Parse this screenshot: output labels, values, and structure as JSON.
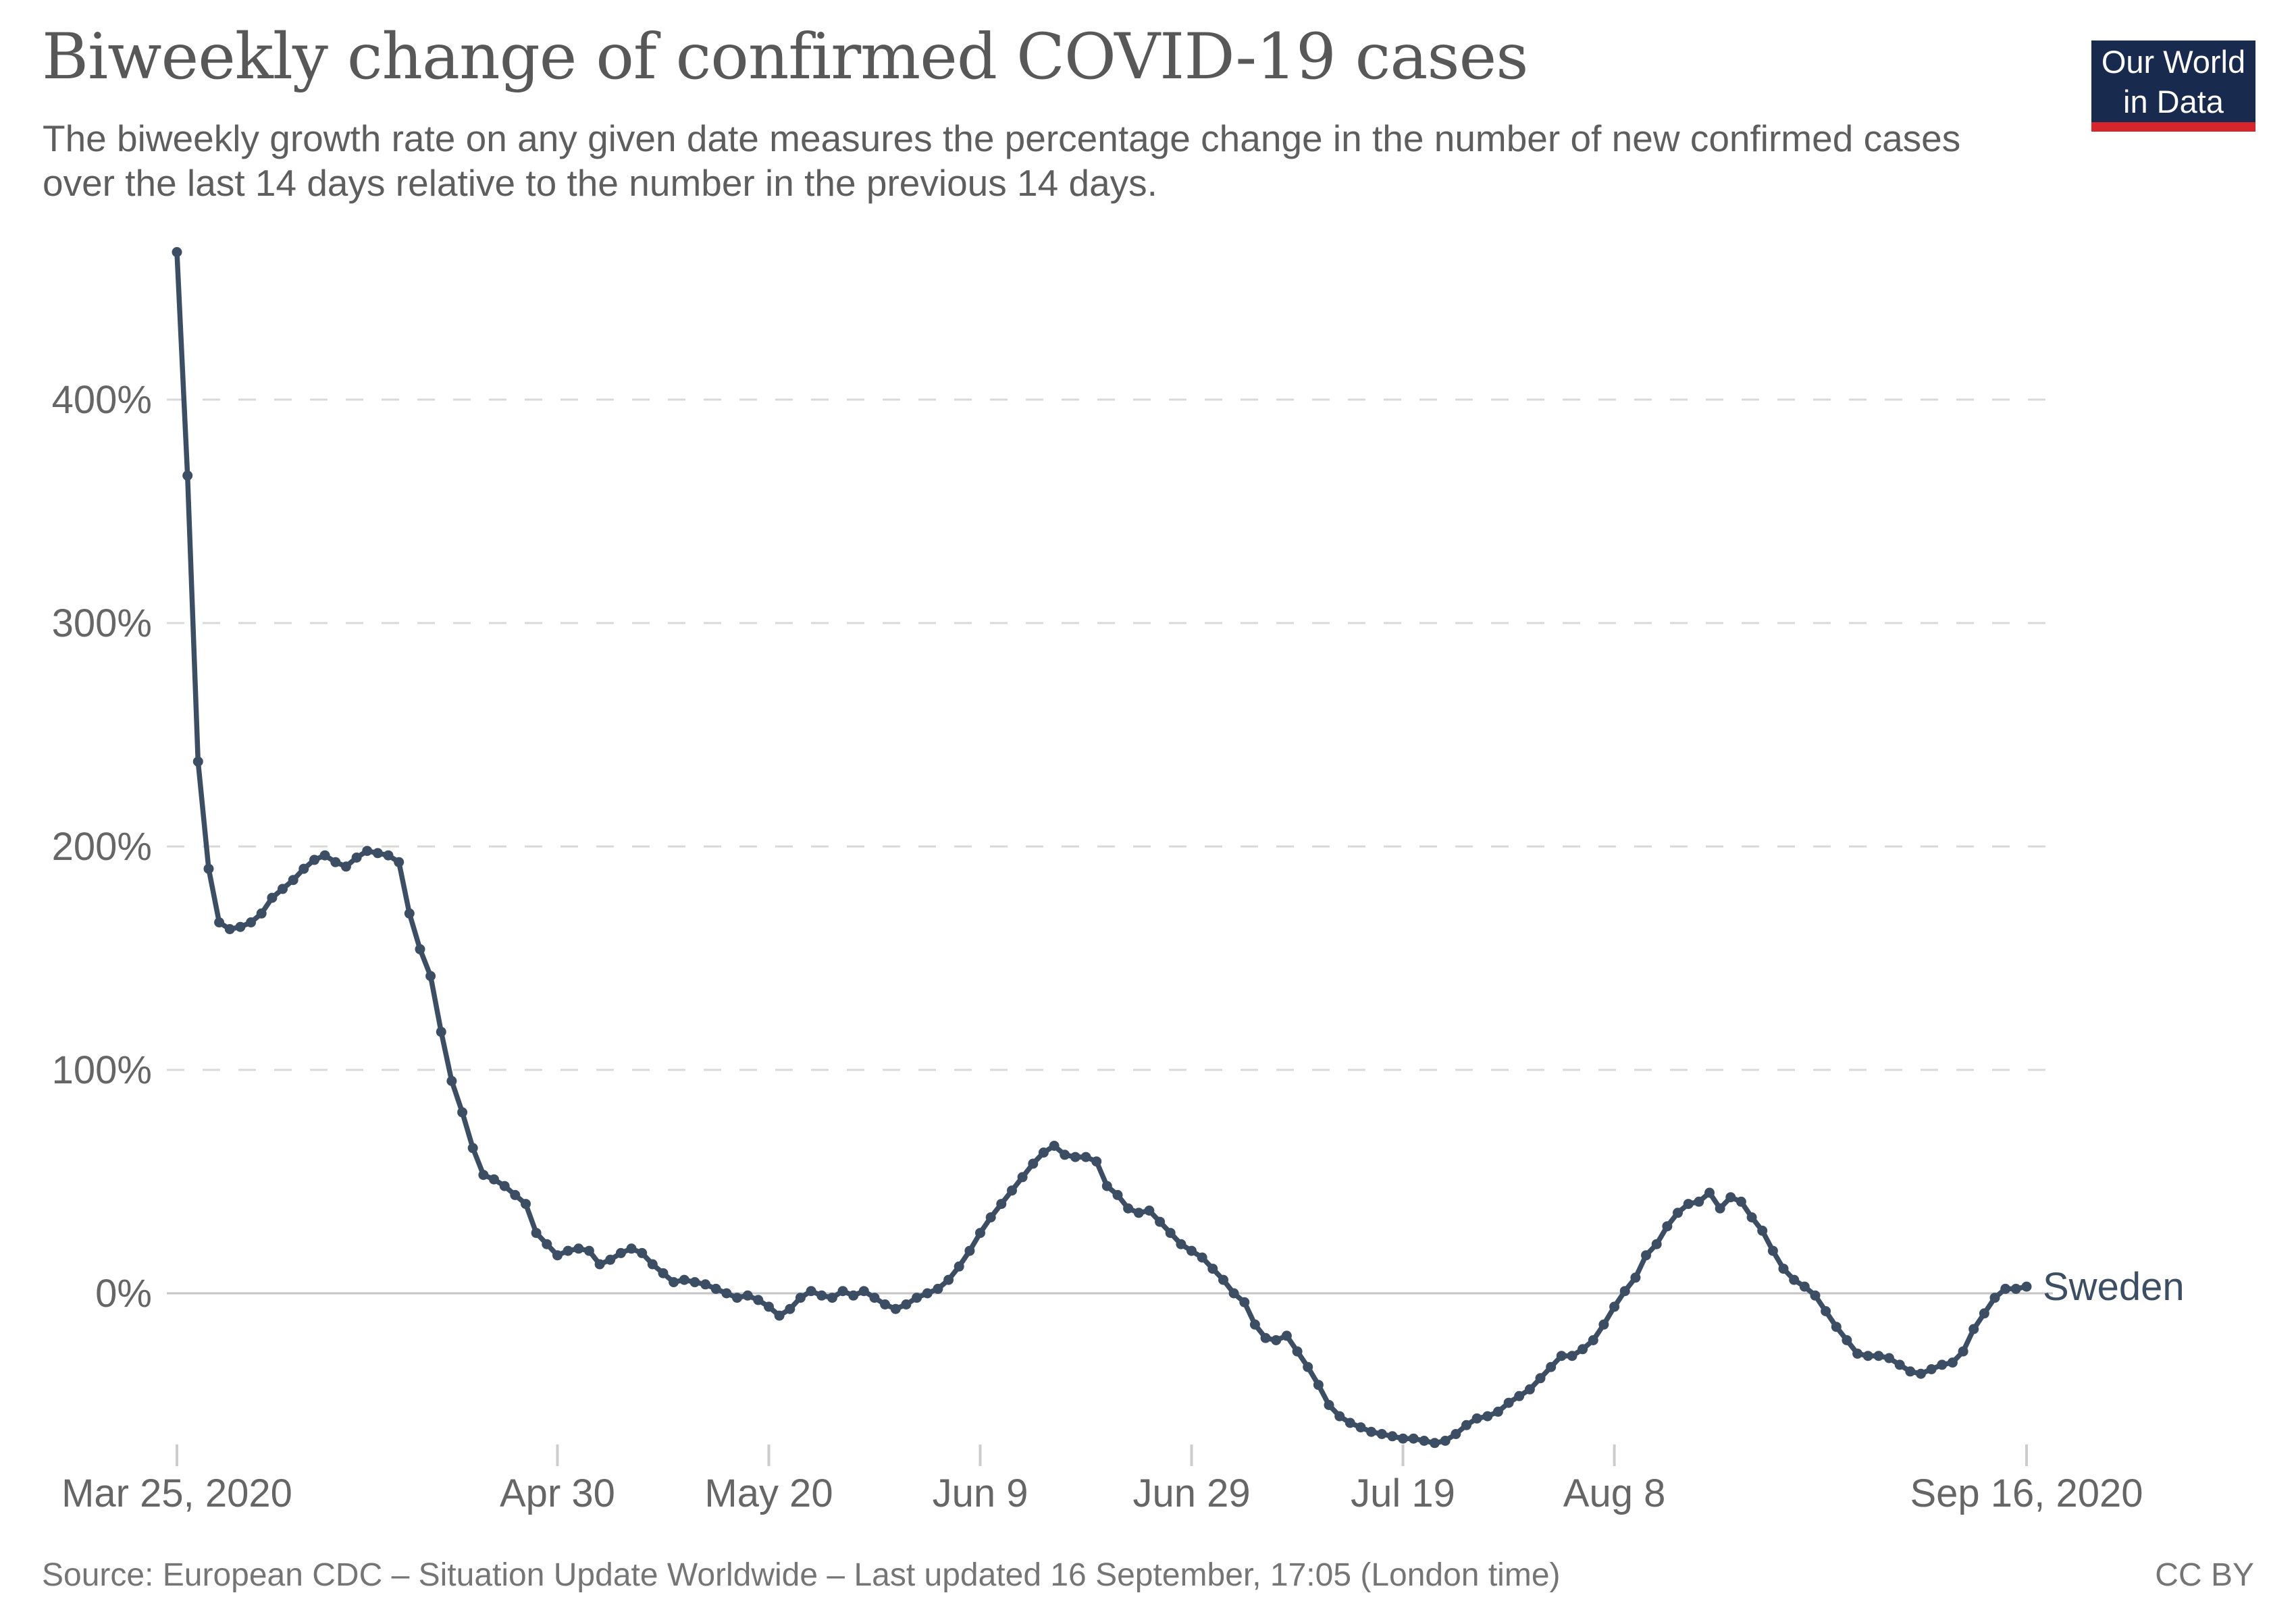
{
  "header": {
    "title": "Biweekly change of confirmed COVID-19 cases",
    "subtitle": "The biweekly growth rate on any given date measures the percentage change in the number of new confirmed cases over the last 14 days relative to the number in the previous 14 days.",
    "logo": {
      "line1": "Our World",
      "line2": "in Data"
    }
  },
  "footer": {
    "source": "Source: European CDC – Situation Update Worldwide – Last updated 16 September, 17:05 (London time)",
    "license": "CC BY"
  },
  "colors": {
    "series_line": "#3c4e63",
    "grid_line": "#d9d9d9",
    "zero_line": "#c5c5c5",
    "tick_mark": "#cccccc",
    "axis_text": "#666666",
    "title_text": "#585858",
    "subtitle_text": "#5e5e5e",
    "footer_text": "#757575",
    "logo_background": "#182a4e",
    "logo_stripe": "#d7262b"
  },
  "chart_data": {
    "type": "line",
    "title": "Biweekly change of confirmed COVID-19 cases",
    "xlabel": "",
    "ylabel": "",
    "unit": "%",
    "x_start_date": "Mar 25, 2020",
    "x_end_date": "Sep 16, 2020",
    "x_days_total": 175,
    "grid": "horizontal dashed gridlines, solid zero line, no vertical grid",
    "legend_position": "label at end of line",
    "y_ticks": [
      0,
      100,
      200,
      300,
      400
    ],
    "ylim": [
      -70,
      470
    ],
    "x_tick_labels": [
      {
        "day": 0,
        "label": "Mar 25, 2020"
      },
      {
        "day": 36,
        "label": "Apr 30"
      },
      {
        "day": 56,
        "label": "May 20"
      },
      {
        "day": 76,
        "label": "Jun 9"
      },
      {
        "day": 96,
        "label": "Jun 29"
      },
      {
        "day": 116,
        "label": "Jul 19"
      },
      {
        "day": 136,
        "label": "Aug 8"
      },
      {
        "day": 175,
        "label": "Sep 16, 2020"
      }
    ],
    "series": [
      {
        "name": "Sweden",
        "values": [
          466,
          366,
          238,
          190,
          166,
          163,
          164,
          166,
          170,
          177,
          181,
          185,
          190,
          194,
          196,
          193,
          191,
          195,
          198,
          197,
          196,
          193,
          170,
          154,
          142,
          117,
          95,
          81,
          65,
          53,
          51,
          48,
          44,
          40,
          27,
          22,
          17,
          19,
          20,
          19,
          13,
          15,
          18,
          20,
          18,
          13,
          9,
          5,
          6,
          5,
          4,
          2,
          0,
          -2,
          -1,
          -3,
          -6,
          -10,
          -7,
          -2,
          1,
          -1,
          -2,
          1,
          -1,
          1,
          -2,
          -5,
          -7,
          -5,
          -2,
          0,
          2,
          6,
          12,
          19,
          27,
          34,
          40,
          46,
          52,
          58,
          63,
          66,
          62,
          61,
          61,
          59,
          48,
          44,
          38,
          36,
          37,
          32,
          27,
          22,
          19,
          16,
          11,
          6,
          0,
          -4,
          -14,
          -20,
          -21,
          -19,
          -26,
          -33,
          -41,
          -50,
          -55,
          -58,
          -60,
          -62,
          -63,
          -64,
          -65,
          -65,
          -66,
          -67,
          -66,
          -63,
          -59,
          -56,
          -55,
          -53,
          -49,
          -46,
          -43,
          -38,
          -33,
          -28,
          -28,
          -25,
          -21,
          -14,
          -6,
          1,
          7,
          17,
          22,
          30,
          36,
          40,
          41,
          45,
          38,
          43,
          41,
          34,
          28,
          19,
          11,
          6,
          3,
          -1,
          -8,
          -15,
          -21,
          -27,
          -28,
          -28,
          -29,
          -32,
          -35,
          -36,
          -34,
          -32,
          -31,
          -26,
          -16,
          -9,
          -2,
          2,
          2,
          3
        ]
      }
    ]
  }
}
